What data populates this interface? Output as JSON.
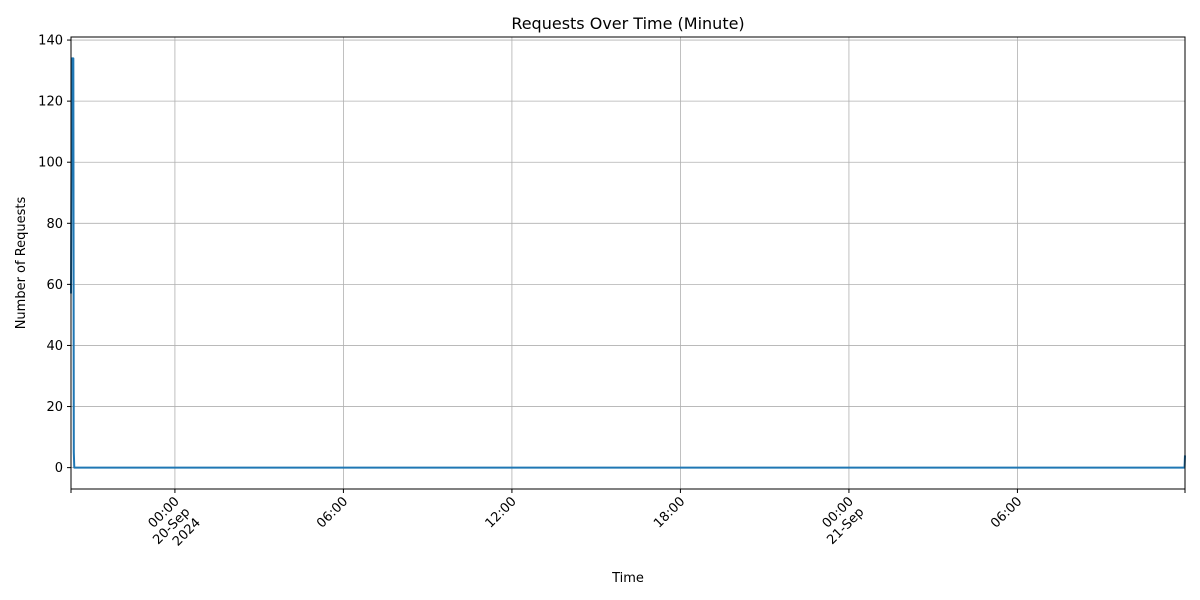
{
  "chart_data": {
    "type": "line",
    "title": "Requests Over Time (Minute)",
    "xlabel": "Time",
    "ylabel": "Number of Requests",
    "x_type": "datetime",
    "xlim": [
      "2024-09-19T20:18",
      "2024-09-21T11:58"
    ],
    "ylim": [
      -7,
      141
    ],
    "grid": true,
    "line_color": "#1f77b4",
    "y_ticks": [
      0,
      20,
      40,
      60,
      80,
      100,
      120,
      140
    ],
    "y_tick_labels": [
      "0",
      "20",
      "40",
      "60",
      "80",
      "100",
      "120",
      "140"
    ],
    "x_ticks": [
      {
        "x": "2024-09-20T00:00",
        "lines": [
          "00:00",
          "20-Sep",
          "2024"
        ],
        "grid": true
      },
      {
        "x": "2024-09-20T06:00",
        "lines": [
          "06:00"
        ],
        "grid": true
      },
      {
        "x": "2024-09-20T12:00",
        "lines": [
          "12:00"
        ],
        "grid": true
      },
      {
        "x": "2024-09-20T18:00",
        "lines": [
          "18:00"
        ],
        "grid": true
      },
      {
        "x": "2024-09-21T00:00",
        "lines": [
          "00:00",
          "21-Sep"
        ],
        "grid": true
      },
      {
        "x": "2024-09-21T06:00",
        "lines": [
          "06:00"
        ],
        "grid": true
      }
    ],
    "series": [
      {
        "x": [
          "2024-09-19T20:18",
          "2024-09-19T20:20",
          "2024-09-19T20:21",
          "2024-09-19T20:22",
          "2024-09-19T20:23",
          "2024-09-19T20:24",
          "2024-09-19T20:25",
          "2024-09-21T11:57",
          "2024-09-21T11:58"
        ],
        "values": [
          57,
          134,
          134,
          134,
          134,
          5,
          0,
          0,
          4
        ]
      }
    ]
  }
}
